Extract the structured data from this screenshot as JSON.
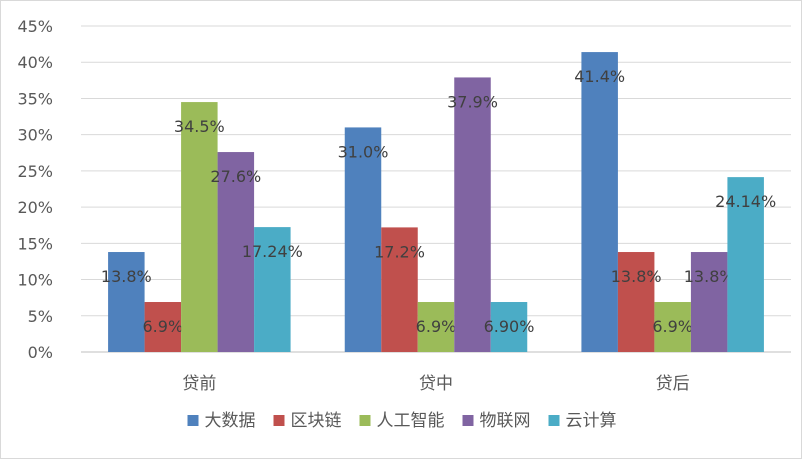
{
  "chart_data": {
    "type": "bar",
    "categories": [
      "贷前",
      "贷中",
      "贷后"
    ],
    "series": [
      {
        "name": "大数据",
        "color": "#4f81bd",
        "values": [
          13.8,
          31.0,
          41.4
        ],
        "labels": [
          "13.8%",
          "31.0%",
          "41.4%"
        ]
      },
      {
        "name": "区块链",
        "color": "#c0504d",
        "values": [
          6.9,
          17.2,
          13.8
        ],
        "labels": [
          "6.9%",
          "17.2%",
          "13.8%"
        ]
      },
      {
        "name": "人工智能",
        "color": "#9bbb59",
        "values": [
          34.5,
          6.9,
          6.9
        ],
        "labels": [
          "34.5%",
          "6.9%",
          "6.9%"
        ]
      },
      {
        "name": "物联网",
        "color": "#8064a2",
        "values": [
          27.6,
          37.9,
          13.8
        ],
        "labels": [
          "27.6%",
          "37.9%",
          "13.8%"
        ]
      },
      {
        "name": "云计算",
        "color": "#4bacc6",
        "values": [
          17.24,
          6.9,
          24.14
        ],
        "labels": [
          "17.24%",
          "6.90%",
          "24.14%"
        ]
      }
    ],
    "ylim": [
      0,
      45
    ],
    "yticks": [
      "0%",
      "5%",
      "10%",
      "15%",
      "20%",
      "25%",
      "30%",
      "35%",
      "40%",
      "45%"
    ],
    "grid": true,
    "legend_position": "bottom"
  }
}
